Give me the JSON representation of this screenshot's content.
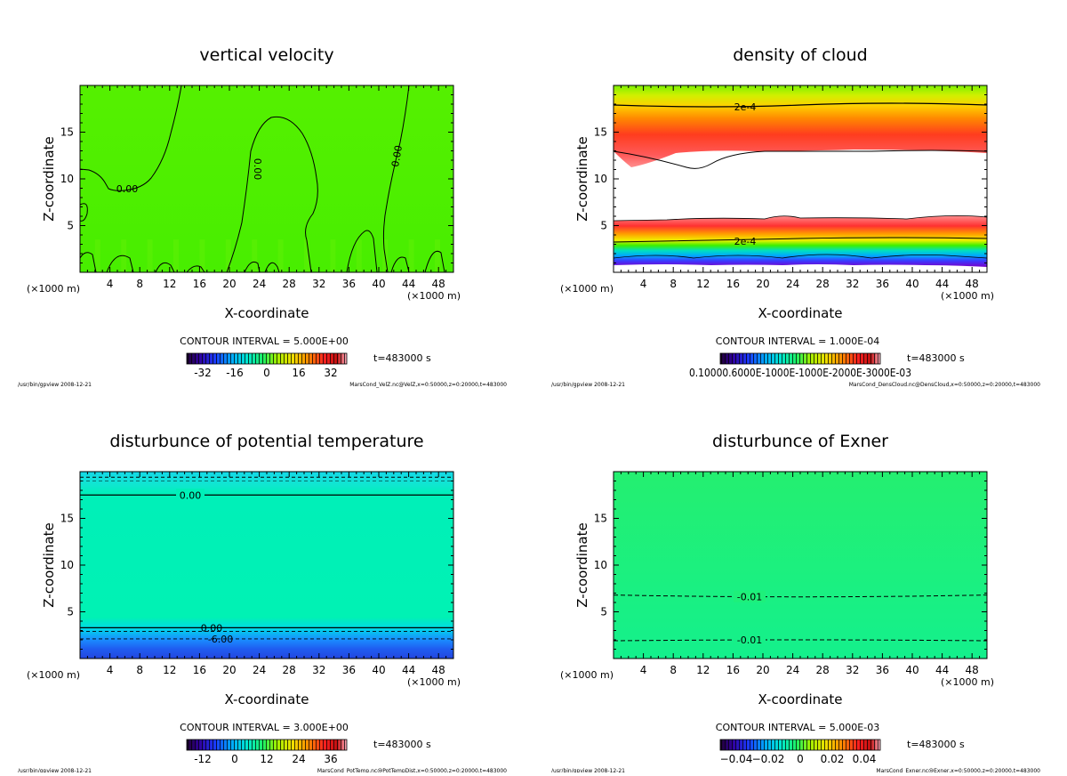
{
  "chart_data": [
    {
      "type": "heatmap",
      "title": "vertical velocity",
      "xlabel": "X-coordinate",
      "ylabel": "Z-coordinate",
      "x_unit": "(×1000 m)",
      "z_unit": "(×1000 m)",
      "xlim": [
        0,
        50
      ],
      "ylim": [
        0,
        20
      ],
      "xticks": [
        4,
        8,
        12,
        16,
        20,
        24,
        28,
        32,
        36,
        40,
        44,
        48
      ],
      "yticks": [
        5,
        10,
        15
      ],
      "contour_interval": "CONTOUR INTERVAL = 5.000E+00",
      "colorbar_ticks": [
        -32,
        -16,
        0,
        16,
        32
      ],
      "colorbar_range": [
        -40,
        40
      ],
      "time_label": "t=483000 s",
      "contour_labels": [
        "0.00",
        "0.00",
        "0.00"
      ],
      "footer_left": "/usr/bin/gpview  2008-12-21",
      "footer_right": "MarsCond_VelZ.nc@VelZ,x=0:50000,z=0:20000,t=483000",
      "colormap": "rainbow",
      "base_color": "#4df000"
    },
    {
      "type": "heatmap",
      "title": "density of cloud",
      "xlabel": "X-coordinate",
      "ylabel": "Z-coordinate",
      "x_unit": "(×1000 m)",
      "z_unit": "(×1000 m)",
      "xlim": [
        0,
        50
      ],
      "ylim": [
        0,
        20
      ],
      "xticks": [
        4,
        8,
        12,
        16,
        20,
        24,
        28,
        32,
        36,
        40,
        44,
        48
      ],
      "yticks": [
        5,
        10,
        15
      ],
      "contour_interval": "CONTOUR INTERVAL = 1.000E-04",
      "colorbar_ticks_text": "0.10000.6000E-1000E-1000E-2000E-3000E-03",
      "time_label": "t=483000 s",
      "contour_labels": [
        "2e-4",
        "2e-4"
      ],
      "footer_left": "/usr/bin/gpview  2008-12-21",
      "footer_right": "MarsCond_DensCloud.nc@DensCloud,x=0:50000,z=0:20000,t=483000",
      "colormap": "rainbow",
      "notes_layers": "upper cloud ~12-19 km, gap ~6-12 km, lower cloud ~1-6 km"
    },
    {
      "type": "heatmap",
      "title": "disturbunce of potential temperature",
      "xlabel": "X-coordinate",
      "ylabel": "Z-coordinate",
      "x_unit": "(×1000 m)",
      "z_unit": "(×1000 m)",
      "xlim": [
        0,
        50
      ],
      "ylim": [
        0,
        20
      ],
      "xticks": [
        4,
        8,
        12,
        16,
        20,
        24,
        28,
        32,
        36,
        40,
        44,
        48
      ],
      "yticks": [
        5,
        10,
        15
      ],
      "contour_interval": "CONTOUR INTERVAL = 3.000E+00",
      "colorbar_ticks": [
        -12,
        0,
        12,
        24,
        36
      ],
      "colorbar_range": [
        -18,
        42
      ],
      "time_label": "t=483000 s",
      "contour_labels": [
        "0.00",
        "0.00",
        "-6.00"
      ],
      "footer_left": "/usr/bin/gpview  2008-12-21",
      "footer_right": "MarsCond_PotTemp.nc@PotTempDist,x=0:50000,z=0:20000,t=483000",
      "colormap": "rainbow",
      "base_color": "#00f2b6"
    },
    {
      "type": "heatmap",
      "title": "disturbunce of Exner",
      "xlabel": "X-coordinate",
      "ylabel": "Z-coordinate",
      "x_unit": "(×1000 m)",
      "z_unit": "(×1000 m)",
      "xlim": [
        0,
        50
      ],
      "ylim": [
        0,
        20
      ],
      "xticks": [
        4,
        8,
        12,
        16,
        20,
        24,
        28,
        32,
        36,
        40,
        44,
        48
      ],
      "yticks": [
        5,
        10,
        15
      ],
      "contour_interval": "CONTOUR INTERVAL = 5.000E-03",
      "colorbar_ticks": [
        -0.04,
        -0.02,
        0,
        0.02,
        0.04
      ],
      "colorbar_tick_labels": [
        "−0.04",
        "−0.02",
        "0",
        "0.02",
        "0.04"
      ],
      "colorbar_range": [
        -0.05,
        0.05
      ],
      "time_label": "t=483000 s",
      "contour_labels": [
        "-0.01",
        "-0.01"
      ],
      "footer_left": "/usr/bin/gpview  2008-12-21",
      "footer_right": "MarsCond_Exner.nc@Exner,x=0:50000,z=0:20000,t=483000",
      "colormap": "rainbow",
      "base_color": "#1ef07a"
    }
  ]
}
